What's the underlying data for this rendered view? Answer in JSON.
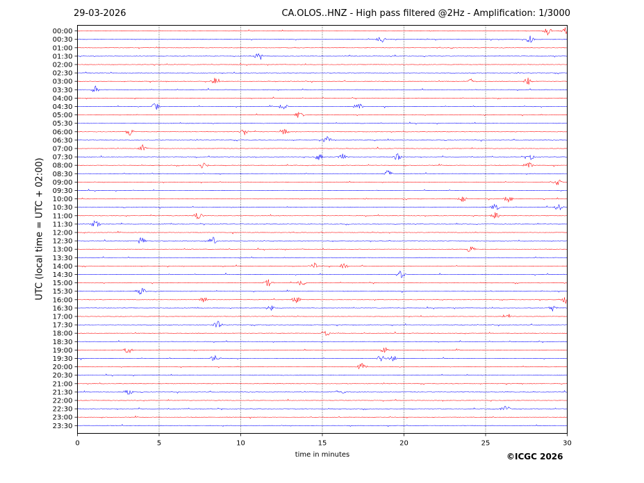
{
  "header": {
    "date": "29-03-2026",
    "title": "CA.OLOS..HNZ - High pass filtered @2Hz - Amplification: 1/3000"
  },
  "footer": {
    "copyright": "©ICGC 2026"
  },
  "colors": {
    "odd_trace": "#ff0000",
    "even_trace": "#0000ff",
    "grid": "#000000"
  },
  "chart_data": {
    "type": "line",
    "chart_kind": "helicorder",
    "xlabel": "time in minutes",
    "ylabel": "UTC (local time = UTC + 02:00)",
    "xlim": [
      0,
      30
    ],
    "xticks": [
      "0",
      "5",
      "10",
      "15",
      "20",
      "25",
      "30"
    ],
    "vertical_gridlines_at_minutes": [
      5,
      10,
      15,
      20,
      25
    ],
    "row_labels": [
      "00:00",
      "00:30",
      "01:00",
      "01:30",
      "02:00",
      "02:30",
      "03:00",
      "03:30",
      "04:00",
      "04:30",
      "05:00",
      "05:30",
      "06:00",
      "06:30",
      "07:00",
      "07:30",
      "08:00",
      "08:30",
      "09:00",
      "09:30",
      "10:00",
      "10:30",
      "11:00",
      "11:30",
      "12:00",
      "12:30",
      "13:00",
      "13:30",
      "14:00",
      "14:30",
      "15:00",
      "15:30",
      "16:00",
      "16:30",
      "17:00",
      "17:30",
      "18:00",
      "18:30",
      "19:00",
      "19:30",
      "20:00",
      "20:30",
      "21:00",
      "21:30",
      "22:00",
      "22:30",
      "23:00",
      "23:30"
    ],
    "trace_colors": [
      "red",
      "blue"
    ],
    "events": [
      {
        "row": "00:00",
        "minute": 28.8
      },
      {
        "row": "00:00",
        "minute": 29.9
      },
      {
        "row": "00:30",
        "minute": 18.6
      },
      {
        "row": "00:30",
        "minute": 27.7
      },
      {
        "row": "01:30",
        "minute": 11.1
      },
      {
        "row": "03:00",
        "minute": 8.4
      },
      {
        "row": "03:00",
        "minute": 24.2
      },
      {
        "row": "03:00",
        "minute": 27.6
      },
      {
        "row": "03:30",
        "minute": 1.1
      },
      {
        "row": "04:30",
        "minute": 4.8
      },
      {
        "row": "04:30",
        "minute": 12.6
      },
      {
        "row": "04:30",
        "minute": 17.2
      },
      {
        "row": "05:00",
        "minute": 13.6
      },
      {
        "row": "06:00",
        "minute": 10.2
      },
      {
        "row": "06:00",
        "minute": 12.7
      },
      {
        "row": "06:00",
        "minute": 3.2
      },
      {
        "row": "06:30",
        "minute": 15.3
      },
      {
        "row": "07:00",
        "minute": 4.0
      },
      {
        "row": "07:30",
        "minute": 14.8
      },
      {
        "row": "07:30",
        "minute": 16.2
      },
      {
        "row": "07:30",
        "minute": 19.6
      },
      {
        "row": "07:30",
        "minute": 27.7
      },
      {
        "row": "08:00",
        "minute": 27.6
      },
      {
        "row": "08:00",
        "minute": 7.7
      },
      {
        "row": "08:30",
        "minute": 19.0
      },
      {
        "row": "09:00",
        "minute": 29.4
      },
      {
        "row": "10:00",
        "minute": 23.6
      },
      {
        "row": "10:00",
        "minute": 26.4
      },
      {
        "row": "10:30",
        "minute": 25.6
      },
      {
        "row": "10:30",
        "minute": 29.5
      },
      {
        "row": "11:00",
        "minute": 7.4
      },
      {
        "row": "11:00",
        "minute": 25.6
      },
      {
        "row": "11:30",
        "minute": 1.1
      },
      {
        "row": "12:30",
        "minute": 3.9
      },
      {
        "row": "12:30",
        "minute": 8.3
      },
      {
        "row": "13:00",
        "minute": 24.1
      },
      {
        "row": "14:00",
        "minute": 14.5
      },
      {
        "row": "14:00",
        "minute": 16.3
      },
      {
        "row": "14:30",
        "minute": 19.8
      },
      {
        "row": "15:00",
        "minute": 11.7
      },
      {
        "row": "15:00",
        "minute": 13.7
      },
      {
        "row": "15:30",
        "minute": 3.9
      },
      {
        "row": "16:00",
        "minute": 7.7
      },
      {
        "row": "16:00",
        "minute": 13.4
      },
      {
        "row": "16:00",
        "minute": 29.9
      },
      {
        "row": "16:30",
        "minute": 11.8
      },
      {
        "row": "16:30",
        "minute": 29.1
      },
      {
        "row": "17:00",
        "minute": 26.3
      },
      {
        "row": "17:30",
        "minute": 8.6
      },
      {
        "row": "18:00",
        "minute": 15.2
      },
      {
        "row": "19:00",
        "minute": 3.1
      },
      {
        "row": "19:00",
        "minute": 18.8
      },
      {
        "row": "19:30",
        "minute": 8.4
      },
      {
        "row": "19:30",
        "minute": 18.6
      },
      {
        "row": "19:30",
        "minute": 19.3
      },
      {
        "row": "20:00",
        "minute": 17.4
      },
      {
        "row": "21:30",
        "minute": 3.1
      },
      {
        "row": "21:30",
        "minute": 16.1
      },
      {
        "row": "22:30",
        "minute": 26.2
      }
    ]
  }
}
